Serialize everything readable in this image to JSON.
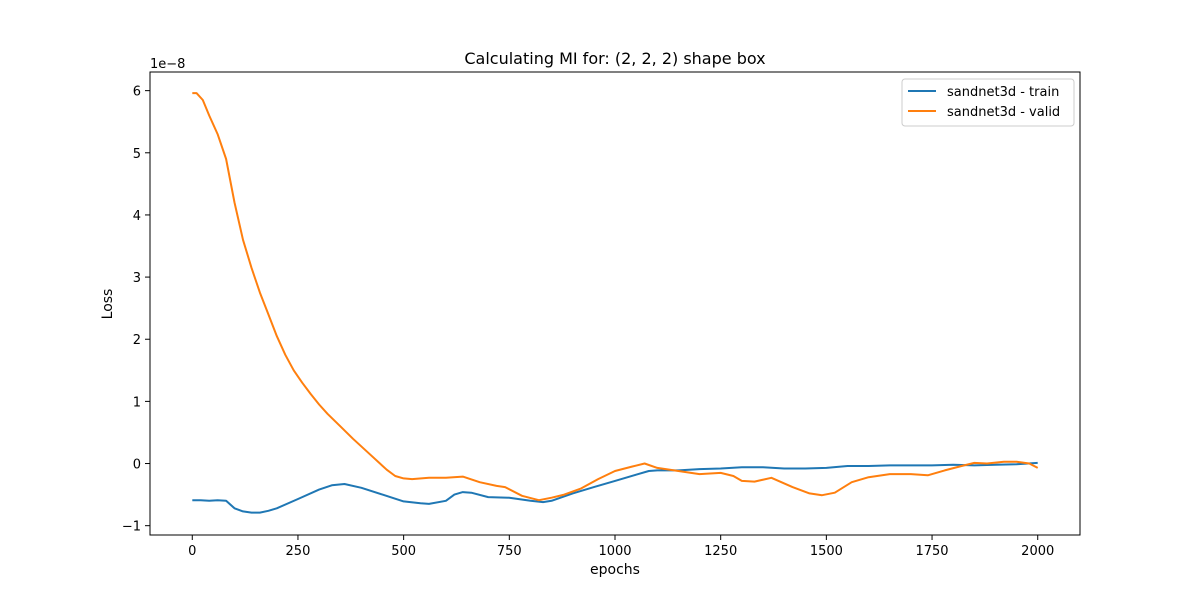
{
  "chart_data": {
    "type": "line",
    "title": "Calculating MI for: (2, 2, 2) shape box",
    "xlabel": "epochs",
    "ylabel": "Loss",
    "y_scale_label": "1e−8",
    "xlim": [
      -100,
      2100
    ],
    "ylim": [
      -1.15,
      6.3
    ],
    "x_ticks": [
      0,
      250,
      500,
      750,
      1000,
      1250,
      1500,
      1750,
      2000
    ],
    "y_ticks": [
      -1,
      0,
      1,
      2,
      3,
      4,
      5,
      6
    ],
    "grid": false,
    "legend_position": "top-right",
    "series": [
      {
        "name": "sandnet3d - train",
        "color": "#1f77b4",
        "points": [
          [
            0,
            -0.59
          ],
          [
            20,
            -0.59
          ],
          [
            40,
            -0.6
          ],
          [
            60,
            -0.59
          ],
          [
            80,
            -0.6
          ],
          [
            100,
            -0.72
          ],
          [
            120,
            -0.77
          ],
          [
            140,
            -0.79
          ],
          [
            160,
            -0.79
          ],
          [
            180,
            -0.76
          ],
          [
            200,
            -0.72
          ],
          [
            250,
            -0.57
          ],
          [
            300,
            -0.42
          ],
          [
            330,
            -0.35
          ],
          [
            360,
            -0.33
          ],
          [
            400,
            -0.39
          ],
          [
            450,
            -0.5
          ],
          [
            500,
            -0.61
          ],
          [
            540,
            -0.64
          ],
          [
            560,
            -0.65
          ],
          [
            600,
            -0.6
          ],
          [
            620,
            -0.5
          ],
          [
            640,
            -0.46
          ],
          [
            660,
            -0.47
          ],
          [
            700,
            -0.54
          ],
          [
            750,
            -0.55
          ],
          [
            800,
            -0.6
          ],
          [
            830,
            -0.62
          ],
          [
            850,
            -0.6
          ],
          [
            900,
            -0.48
          ],
          [
            950,
            -0.38
          ],
          [
            1000,
            -0.28
          ],
          [
            1050,
            -0.18
          ],
          [
            1080,
            -0.12
          ],
          [
            1100,
            -0.11
          ],
          [
            1150,
            -0.11
          ],
          [
            1200,
            -0.09
          ],
          [
            1250,
            -0.08
          ],
          [
            1300,
            -0.06
          ],
          [
            1350,
            -0.06
          ],
          [
            1400,
            -0.08
          ],
          [
            1450,
            -0.08
          ],
          [
            1500,
            -0.07
          ],
          [
            1550,
            -0.04
          ],
          [
            1600,
            -0.04
          ],
          [
            1650,
            -0.03
          ],
          [
            1700,
            -0.03
          ],
          [
            1750,
            -0.03
          ],
          [
            1800,
            -0.02
          ],
          [
            1850,
            -0.03
          ],
          [
            1900,
            -0.02
          ],
          [
            1950,
            -0.01
          ],
          [
            2000,
            0.01
          ]
        ]
      },
      {
        "name": "sandnet3d - valid",
        "color": "#ff7f0e",
        "points": [
          [
            0,
            5.96
          ],
          [
            10,
            5.96
          ],
          [
            25,
            5.85
          ],
          [
            40,
            5.6
          ],
          [
            60,
            5.3
          ],
          [
            80,
            4.9
          ],
          [
            100,
            4.2
          ],
          [
            120,
            3.6
          ],
          [
            140,
            3.15
          ],
          [
            160,
            2.75
          ],
          [
            180,
            2.4
          ],
          [
            200,
            2.05
          ],
          [
            220,
            1.75
          ],
          [
            240,
            1.5
          ],
          [
            260,
            1.3
          ],
          [
            280,
            1.12
          ],
          [
            300,
            0.95
          ],
          [
            320,
            0.8
          ],
          [
            350,
            0.6
          ],
          [
            380,
            0.4
          ],
          [
            420,
            0.15
          ],
          [
            460,
            -0.1
          ],
          [
            480,
            -0.2
          ],
          [
            500,
            -0.24
          ],
          [
            520,
            -0.25
          ],
          [
            560,
            -0.23
          ],
          [
            600,
            -0.23
          ],
          [
            640,
            -0.21
          ],
          [
            680,
            -0.3
          ],
          [
            720,
            -0.36
          ],
          [
            740,
            -0.38
          ],
          [
            780,
            -0.52
          ],
          [
            820,
            -0.59
          ],
          [
            850,
            -0.55
          ],
          [
            880,
            -0.5
          ],
          [
            920,
            -0.4
          ],
          [
            960,
            -0.25
          ],
          [
            1000,
            -0.12
          ],
          [
            1040,
            -0.05
          ],
          [
            1070,
            0.0
          ],
          [
            1100,
            -0.07
          ],
          [
            1150,
            -0.12
          ],
          [
            1200,
            -0.17
          ],
          [
            1250,
            -0.15
          ],
          [
            1280,
            -0.2
          ],
          [
            1300,
            -0.28
          ],
          [
            1330,
            -0.29
          ],
          [
            1370,
            -0.23
          ],
          [
            1420,
            -0.38
          ],
          [
            1460,
            -0.48
          ],
          [
            1490,
            -0.51
          ],
          [
            1520,
            -0.47
          ],
          [
            1560,
            -0.3
          ],
          [
            1600,
            -0.22
          ],
          [
            1650,
            -0.17
          ],
          [
            1700,
            -0.17
          ],
          [
            1740,
            -0.19
          ],
          [
            1780,
            -0.11
          ],
          [
            1820,
            -0.04
          ],
          [
            1850,
            0.01
          ],
          [
            1880,
            0.0
          ],
          [
            1920,
            0.03
          ],
          [
            1950,
            0.03
          ],
          [
            1980,
            0.0
          ],
          [
            2000,
            -0.07
          ]
        ]
      }
    ]
  }
}
